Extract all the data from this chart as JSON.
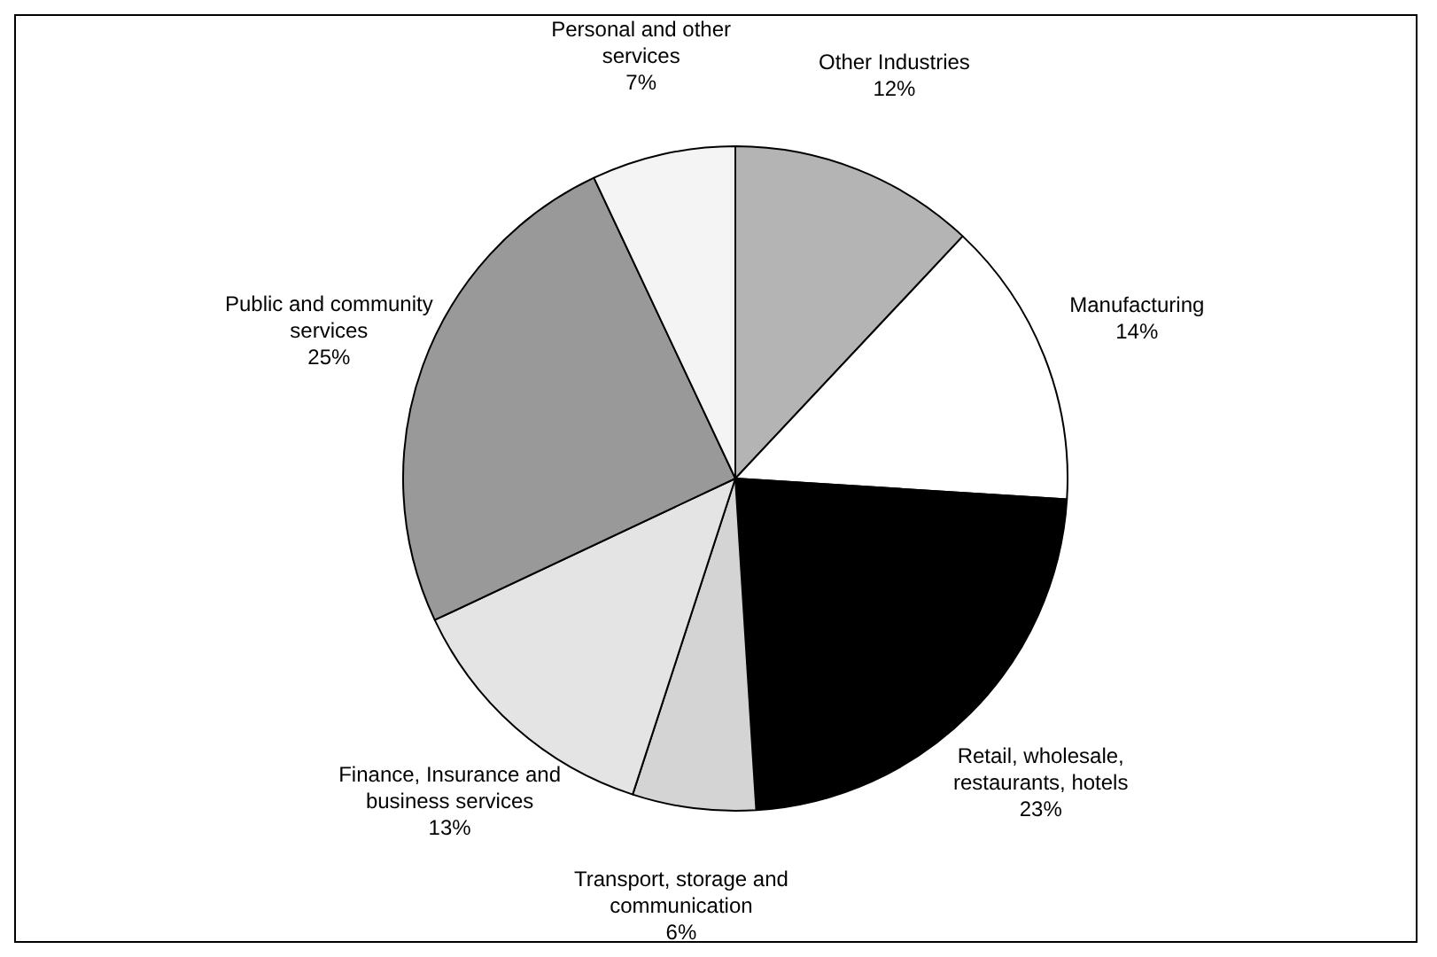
{
  "chart_data": {
    "type": "pie",
    "categories": [
      "Other Industries",
      "Manufacturing",
      "Retail, wholesale, restaurants, hotels",
      "Transport, storage and communication",
      "Finance, Insurance and business services",
      "Public and community services",
      "Personal and other services"
    ],
    "values": [
      12,
      14,
      23,
      6,
      13,
      25,
      7
    ],
    "value_labels": [
      "12%",
      "14%",
      "23%",
      "6%",
      "13%",
      "25%",
      "7%"
    ],
    "colors": [
      "#b4b4b4",
      "#ffffff",
      "#000000",
      "#d4d4d4",
      "#e4e4e4",
      "#999999",
      "#f4f4f4"
    ],
    "legend": false
  }
}
